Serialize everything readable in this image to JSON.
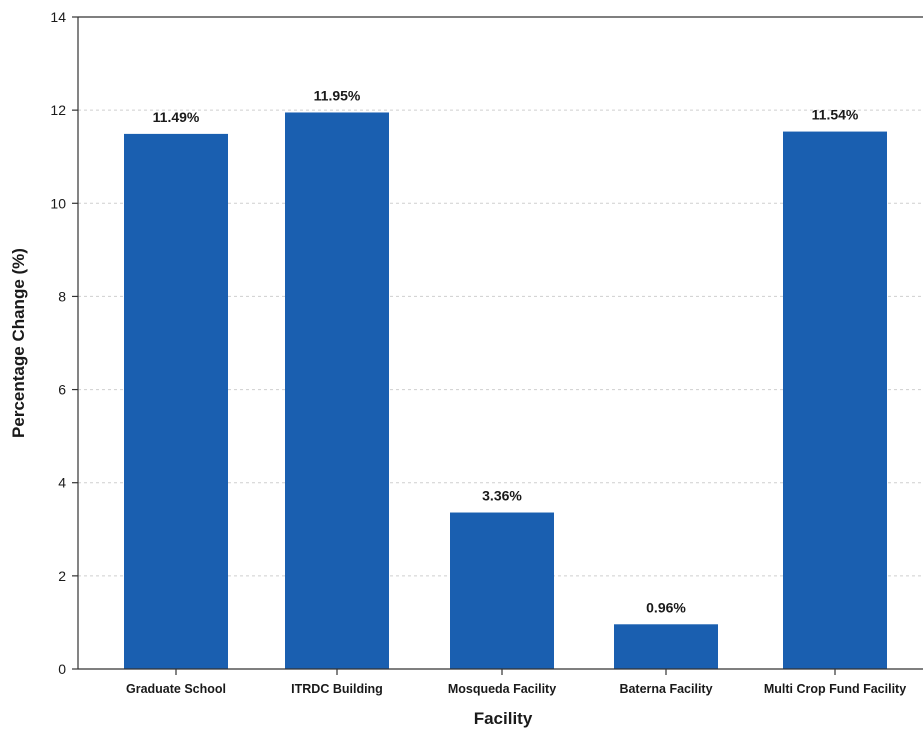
{
  "chart_data": {
    "type": "bar",
    "categories": [
      "Graduate School",
      "ITRDC Building",
      "Mosqueda Facility",
      "Baterna Facility",
      "Multi Crop Fund Facility"
    ],
    "values": [
      11.49,
      11.95,
      3.36,
      0.96,
      11.54
    ],
    "data_labels": [
      "11.49%",
      "11.95%",
      "3.36%",
      "0.96%",
      "11.54%"
    ],
    "xlabel": "Facility",
    "ylabel": "Percentage Change (%)",
    "ylim": [
      0,
      14
    ],
    "yticks": [
      0,
      2,
      4,
      6,
      8,
      10,
      12,
      14
    ],
    "grid": true,
    "bar_color": "#1a5fb0"
  }
}
